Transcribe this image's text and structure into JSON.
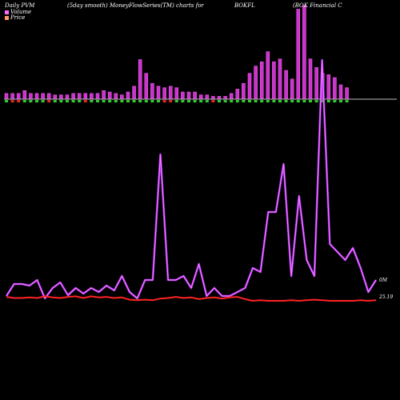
{
  "chart_data": {
    "type": "bar+line",
    "header": {
      "left": "Daily PVM",
      "center": "(5day smooth) MoneyFlowSeries(TM) charts for",
      "ticker": "BOKFL",
      "company": "(BOK Financial C"
    },
    "legend": [
      {
        "name": "Volume",
        "color": "#ff66ff"
      },
      {
        "name": "Price",
        "color": "#ff9966"
      }
    ],
    "labels": {
      "volume_end": "0M",
      "price_end": "25.19"
    },
    "volume_bars": [
      {
        "v": 0.08,
        "dir": "up"
      },
      {
        "v": 0.08,
        "dir": "down"
      },
      {
        "v": 0.08,
        "dir": "down"
      },
      {
        "v": 0.12,
        "dir": "up"
      },
      {
        "v": 0.08,
        "dir": "up"
      },
      {
        "v": 0.08,
        "dir": "up"
      },
      {
        "v": 0.08,
        "dir": "up"
      },
      {
        "v": 0.08,
        "dir": "down"
      },
      {
        "v": 0.06,
        "dir": "up"
      },
      {
        "v": 0.06,
        "dir": "up"
      },
      {
        "v": 0.06,
        "dir": "up"
      },
      {
        "v": 0.08,
        "dir": "up"
      },
      {
        "v": 0.08,
        "dir": "up"
      },
      {
        "v": 0.08,
        "dir": "down"
      },
      {
        "v": 0.08,
        "dir": "up"
      },
      {
        "v": 0.08,
        "dir": "up"
      },
      {
        "v": 0.12,
        "dir": "up"
      },
      {
        "v": 0.1,
        "dir": "up"
      },
      {
        "v": 0.08,
        "dir": "up"
      },
      {
        "v": 0.06,
        "dir": "up"
      },
      {
        "v": 0.1,
        "dir": "up"
      },
      {
        "v": 0.18,
        "dir": "up"
      },
      {
        "v": 0.55,
        "dir": "up"
      },
      {
        "v": 0.36,
        "dir": "up"
      },
      {
        "v": 0.22,
        "dir": "up"
      },
      {
        "v": 0.18,
        "dir": "up"
      },
      {
        "v": 0.16,
        "dir": "down"
      },
      {
        "v": 0.18,
        "dir": "down"
      },
      {
        "v": 0.16,
        "dir": "up"
      },
      {
        "v": 0.1,
        "dir": "up"
      },
      {
        "v": 0.1,
        "dir": "up"
      },
      {
        "v": 0.1,
        "dir": "up"
      },
      {
        "v": 0.06,
        "dir": "up"
      },
      {
        "v": 0.06,
        "dir": "up"
      },
      {
        "v": 0.04,
        "dir": "down"
      },
      {
        "v": 0.04,
        "dir": "up"
      },
      {
        "v": 0.04,
        "dir": "up"
      },
      {
        "v": 0.08,
        "dir": "up"
      },
      {
        "v": 0.14,
        "dir": "up"
      },
      {
        "v": 0.22,
        "dir": "up"
      },
      {
        "v": 0.36,
        "dir": "up"
      },
      {
        "v": 0.46,
        "dir": "up"
      },
      {
        "v": 0.52,
        "dir": "up"
      },
      {
        "v": 0.66,
        "dir": "up"
      },
      {
        "v": 0.52,
        "dir": "up"
      },
      {
        "v": 0.56,
        "dir": "up"
      },
      {
        "v": 0.4,
        "dir": "up"
      },
      {
        "v": 0.28,
        "dir": "up"
      },
      {
        "v": 1.25,
        "dir": "up"
      },
      {
        "v": 1.3,
        "dir": "up"
      },
      {
        "v": 0.56,
        "dir": "up"
      },
      {
        "v": 0.44,
        "dir": "up"
      },
      {
        "v": 0.36,
        "dir": "up"
      },
      {
        "v": 0.34,
        "dir": "up"
      },
      {
        "v": 0.3,
        "dir": "up"
      },
      {
        "v": 0.2,
        "dir": "up"
      },
      {
        "v": 0.16,
        "dir": "up"
      }
    ],
    "volume_line": [
      0.05,
      0.2,
      0.2,
      0.18,
      0.25,
      0.02,
      0.15,
      0.22,
      0.06,
      0.15,
      0.08,
      0.15,
      0.1,
      0.18,
      0.12,
      0.3,
      0.1,
      0.02,
      0.25,
      0.25,
      1.82,
      0.25,
      0.25,
      0.3,
      0.15,
      0.45,
      0.05,
      0.15,
      0.05,
      0.05,
      0.1,
      0.15,
      0.4,
      0.35,
      1.1,
      1.1,
      1.7,
      0.3,
      1.3,
      0.5,
      0.3,
      3.0,
      0.7,
      0.6,
      0.5,
      0.65,
      0.4,
      0.1,
      0.25
    ],
    "price_line": [
      0.07,
      0.05,
      0.05,
      0.06,
      0.05,
      0.08,
      0.06,
      0.05,
      0.07,
      0.08,
      0.05,
      0.08,
      0.06,
      0.07,
      0.05,
      0.06,
      0.02,
      0.01,
      0.02,
      0.01,
      0.04,
      0.05,
      0.07,
      0.05,
      0.06,
      0.03,
      0.05,
      0.06,
      0.04,
      0.06,
      0.07,
      0.03,
      0.0,
      0.01,
      0.0,
      0.0,
      0.0,
      0.01,
      0.0,
      0.01,
      0.02,
      0.01,
      0.0,
      0.0,
      0.0,
      0.0,
      0.01,
      0.0,
      0.01
    ]
  }
}
